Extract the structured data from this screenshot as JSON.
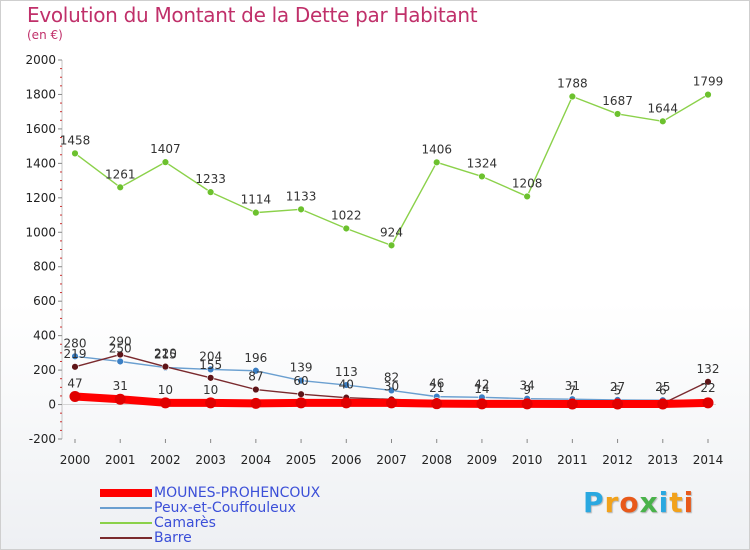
{
  "header": {
    "title": "Evolution du Montant de la Dette par Habitant",
    "unit": "(en €)"
  },
  "logo": {
    "text": "Proxiti",
    "colors": [
      "#2aa8e0",
      "#f2a21b",
      "#e8591a",
      "#49b24a",
      "#2aa8e0",
      "#f2a21b",
      "#e8591a"
    ]
  },
  "chart_data": {
    "type": "line",
    "title": "Evolution du Montant de la Dette par Habitant",
    "ylabel": "(en €)",
    "xlabel": "",
    "ylim": [
      -200,
      2000
    ],
    "ytick_step": 200,
    "grid": false,
    "legend_position": "bottom",
    "x": [
      "2000",
      "2001",
      "2002",
      "2003",
      "2004",
      "2005",
      "2006",
      "2007",
      "2008",
      "2009",
      "2010",
      "2011",
      "2012",
      "2013",
      "2014"
    ],
    "series": [
      {
        "name": "Camarès",
        "color": "#8bd14a",
        "marker_color": "#6cc12e",
        "values": [
          1458,
          1261,
          1407,
          1233,
          1114,
          1133,
          1022,
          924,
          1406,
          1324,
          1208,
          1788,
          1687,
          1644,
          1799
        ],
        "labels": [
          "1458",
          "1261",
          "1407",
          "1233",
          "1114",
          "1133",
          "1022",
          "924",
          "1406",
          "1324",
          "1208",
          "1788",
          "1687",
          "1644",
          "1799"
        ]
      },
      {
        "name": "Peux-et-Couffouleux",
        "color": "#6a9fd0",
        "marker_color": "#3b7fc4",
        "values": [
          280,
          250,
          215,
          204,
          196,
          139,
          113,
          82,
          46,
          42,
          34,
          31,
          27,
          25,
          22
        ],
        "labels": [
          "280",
          "250",
          "215",
          "204",
          "196",
          "139",
          "113",
          "82",
          "46",
          "42",
          "34",
          "31",
          "27",
          "25",
          "22"
        ]
      },
      {
        "name": "Barre",
        "color": "#7a2a2e",
        "marker_color": "#5e1418",
        "values": [
          219,
          290,
          220,
          155,
          87,
          60,
          40,
          30,
          21,
          14,
          9,
          7,
          5,
          6,
          132
        ],
        "labels": [
          "219",
          "290",
          "220",
          "155",
          "87",
          "60",
          "40",
          "30",
          "21",
          "14",
          "9",
          "7",
          "5",
          "6",
          "132"
        ]
      },
      {
        "name": "MOUNES-PROHENCOUX",
        "color": "#ff0000",
        "marker_color": "#e00000",
        "values": [
          47,
          31,
          10,
          10,
          7,
          10,
          10,
          10,
          5,
          4,
          4,
          3,
          3,
          3,
          10
        ],
        "labels": [
          "47",
          "31",
          "10",
          "10",
          "",
          "",
          "",
          "",
          "",
          "",
          "",
          "",
          "",
          "",
          ""
        ]
      }
    ],
    "legend": [
      {
        "name": "MOUNES-PROHENCOUX",
        "color": "#ff0000",
        "text_color": "#3b4fd8",
        "thick": true
      },
      {
        "name": "Peux-et-Couffouleux",
        "color": "#6a9fd0",
        "text_color": "#3b4fd8",
        "thick": false
      },
      {
        "name": "Camarès",
        "color": "#8bd14a",
        "text_color": "#3b4fd8",
        "thick": false
      },
      {
        "name": "Barre",
        "color": "#7a2a2e",
        "text_color": "#3b4fd8",
        "thick": false
      }
    ]
  }
}
